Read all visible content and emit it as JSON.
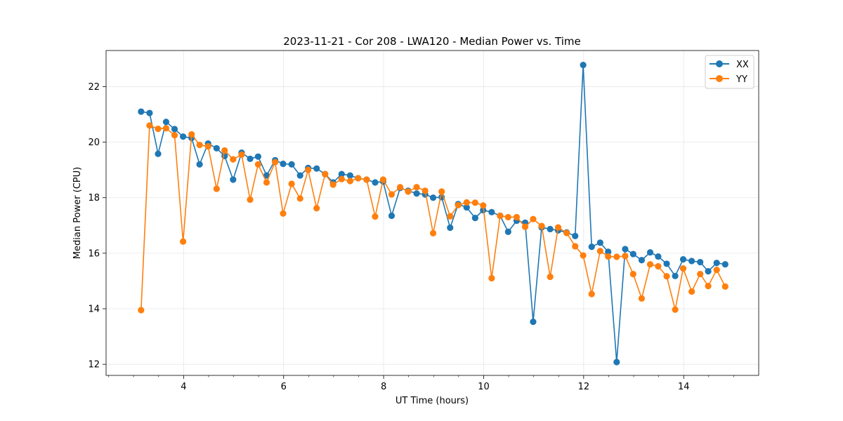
{
  "chart_data": {
    "type": "line",
    "title": "2023-11-21 - Cor 208 - LWA120 - Median Power vs. Time",
    "xlabel": "UT Time (hours)",
    "ylabel": "Median Power (CPU)",
    "xlim": [
      2.45,
      15.5
    ],
    "ylim": [
      11.6,
      23.3
    ],
    "xticks": [
      4,
      6,
      8,
      10,
      12,
      14
    ],
    "xtick_labels": [
      "4",
      "6",
      "8",
      "10",
      "12",
      "14"
    ],
    "yticks": [
      12,
      14,
      16,
      18,
      20,
      22
    ],
    "ytick_labels": [
      "12",
      "14",
      "16",
      "18",
      "20",
      "22"
    ],
    "grid": true,
    "legend_position": "top-right",
    "series": [
      {
        "name": "XX",
        "color": "#1f77b4",
        "x": [
          3.15,
          3.32,
          3.49,
          3.65,
          3.82,
          3.99,
          4.16,
          4.32,
          4.49,
          4.66,
          4.82,
          4.99,
          5.16,
          5.33,
          5.49,
          5.66,
          5.83,
          5.99,
          6.16,
          6.33,
          6.49,
          6.66,
          6.83,
          6.99,
          7.16,
          7.33,
          7.49,
          7.66,
          7.83,
          7.99,
          8.16,
          8.33,
          8.49,
          8.66,
          8.83,
          8.99,
          9.16,
          9.33,
          9.49,
          9.66,
          9.83,
          9.99,
          10.16,
          10.33,
          10.49,
          10.66,
          10.83,
          10.99,
          11.16,
          11.33,
          11.49,
          11.66,
          11.83,
          11.99,
          12.16,
          12.33,
          12.49,
          12.66,
          12.83,
          12.99,
          13.16,
          13.33,
          13.49,
          13.66,
          13.83,
          13.99,
          14.16,
          14.33,
          14.49,
          14.66,
          14.83
        ],
        "values": [
          21.1,
          21.05,
          19.58,
          20.73,
          20.47,
          20.2,
          20.15,
          19.2,
          19.95,
          19.78,
          19.5,
          18.65,
          19.62,
          19.4,
          19.48,
          18.8,
          19.35,
          19.22,
          19.2,
          18.8,
          19.07,
          19.05,
          18.85,
          18.55,
          18.85,
          18.8,
          18.7,
          18.65,
          18.55,
          18.58,
          17.35,
          18.35,
          18.25,
          18.15,
          18.12,
          18.0,
          18.02,
          16.92,
          17.77,
          17.65,
          17.27,
          17.55,
          17.48,
          17.35,
          16.77,
          17.17,
          17.1,
          13.53,
          16.93,
          16.87,
          16.82,
          16.75,
          16.62,
          22.78,
          16.23,
          16.38,
          16.05,
          12.08,
          16.15,
          15.97,
          15.75,
          16.03,
          15.88,
          15.62,
          15.18,
          15.78,
          15.72,
          15.68,
          15.35,
          15.65,
          15.6
        ]
      },
      {
        "name": "YY",
        "color": "#ff7f0e",
        "x": [
          3.15,
          3.32,
          3.49,
          3.65,
          3.82,
          3.99,
          4.16,
          4.32,
          4.49,
          4.66,
          4.82,
          4.99,
          5.16,
          5.33,
          5.49,
          5.66,
          5.83,
          5.99,
          6.16,
          6.33,
          6.49,
          6.66,
          6.83,
          6.99,
          7.16,
          7.33,
          7.49,
          7.66,
          7.83,
          7.99,
          8.16,
          8.33,
          8.49,
          8.66,
          8.83,
          8.99,
          9.16,
          9.33,
          9.49,
          9.66,
          9.83,
          9.99,
          10.16,
          10.33,
          10.49,
          10.66,
          10.83,
          10.99,
          11.16,
          11.33,
          11.49,
          11.66,
          11.83,
          11.99,
          12.16,
          12.33,
          12.49,
          12.66,
          12.83,
          12.99,
          13.16,
          13.33,
          13.49,
          13.66,
          13.83,
          13.99,
          14.16,
          14.33,
          14.49,
          14.66,
          14.83
        ],
        "values": [
          13.95,
          20.6,
          20.48,
          20.5,
          20.25,
          16.42,
          20.28,
          19.9,
          19.85,
          18.32,
          19.7,
          19.38,
          19.55,
          17.93,
          19.2,
          18.55,
          19.28,
          17.43,
          18.5,
          17.97,
          19.0,
          17.62,
          18.85,
          18.47,
          18.67,
          18.6,
          18.7,
          18.65,
          17.32,
          18.65,
          18.12,
          18.38,
          18.22,
          18.38,
          18.25,
          16.72,
          18.22,
          17.33,
          17.73,
          17.83,
          17.82,
          17.72,
          15.1,
          17.35,
          17.3,
          17.3,
          16.95,
          17.23,
          16.98,
          15.15,
          16.93,
          16.73,
          16.25,
          15.92,
          14.53,
          16.08,
          15.88,
          15.87,
          15.9,
          15.25,
          14.37,
          15.6,
          15.53,
          15.17,
          13.97,
          15.45,
          14.62,
          15.25,
          14.82,
          15.4,
          14.8
        ]
      }
    ]
  }
}
